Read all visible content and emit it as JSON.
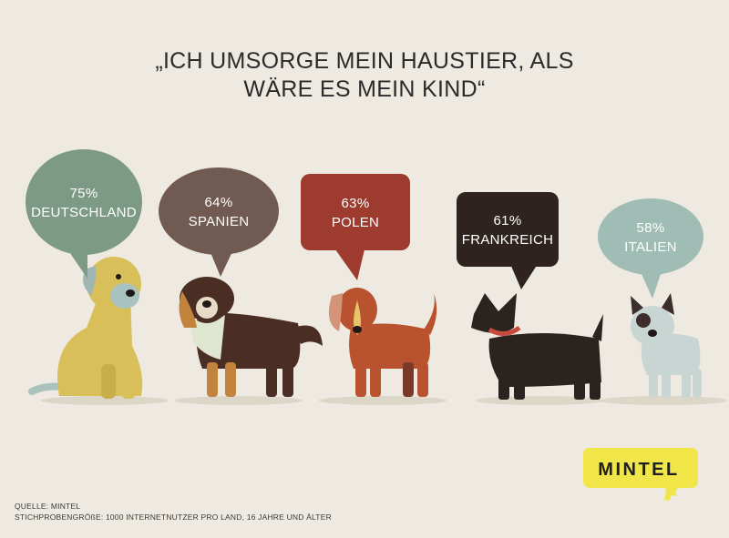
{
  "headline": {
    "line1": "„ICH UMSORGE MEIN HAUSTIER, ALS",
    "line2": "WÄRE ES MEIN KIND“"
  },
  "chart_data": {
    "type": "bar",
    "categories": [
      "DEUTSCHLAND",
      "SPANIEN",
      "POLEN",
      "FRANKREICH",
      "ITALIEN"
    ],
    "values": [
      75,
      64,
      63,
      61,
      58
    ],
    "value_labels": [
      "75%",
      "64%",
      "63%",
      "61%",
      "58%"
    ],
    "unit": "%",
    "title": "„ICH UMSORGE MEIN HAUSTIER, ALS WÄRE ES MEIN KIND“",
    "bubble_colors": [
      "#7d9a86",
      "#715a51",
      "#9c3b2e",
      "#2e231f",
      "#9fbcb5"
    ],
    "dog_colors": [
      "#d8bf5a",
      "#4a2e24",
      "#b9522e",
      "#2b2320",
      "#c9d5d2"
    ]
  },
  "footer": {
    "source": "QUELLE: MINTEL",
    "sample": "STICHPROBENGRÖßE: 1000 INTERNETNUTZER PRO LAND, 16 JAHRE UND ÄLTER"
  },
  "logo": {
    "text": "MINTEL",
    "color": "#f1e649"
  }
}
